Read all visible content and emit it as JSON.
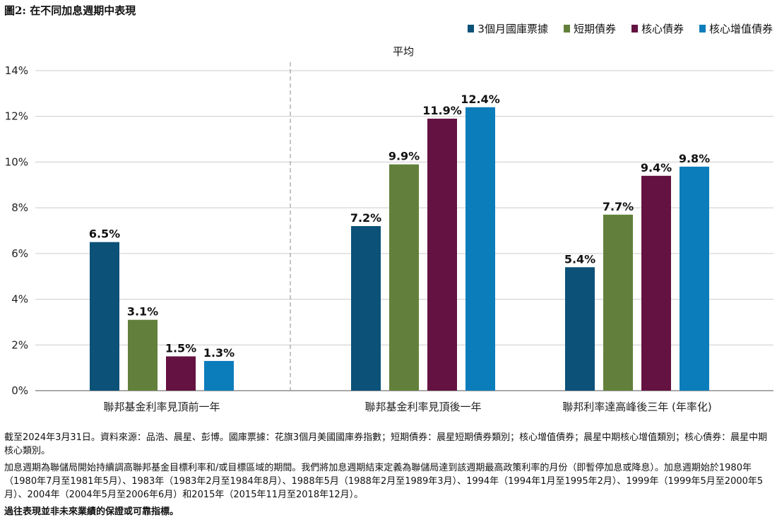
{
  "title": "圖2: 在不同加息週期中表現",
  "subtitle": "平均",
  "chart_data": {
    "type": "bar",
    "title": "圖2: 在不同加息週期中表現",
    "subtitle": "平均",
    "categories": [
      "聯邦基金利率見頂前一年",
      "聯邦基金利率見頂後一年",
      "聯邦利率達高峰後三年 (年率化)"
    ],
    "series": [
      {
        "name": "3個月國庫票據",
        "color": "#0b5178",
        "values": [
          6.5,
          7.2,
          5.4
        ],
        "labels": [
          "6.5%",
          "7.2%",
          "5.4%"
        ]
      },
      {
        "name": "短期債券",
        "color": "#62803b",
        "values": [
          3.1,
          9.9,
          7.7
        ],
        "labels": [
          "3.1%",
          "9.9%",
          "7.7%"
        ]
      },
      {
        "name": "核心債券",
        "color": "#641241",
        "values": [
          1.5,
          11.9,
          9.4
        ],
        "labels": [
          "1.5%",
          "11.9%",
          "9.4%"
        ]
      },
      {
        "name": "核心增值債券",
        "color": "#0c7dbb",
        "values": [
          1.3,
          12.4,
          9.8
        ],
        "labels": [
          "1.3%",
          "12.4%",
          "9.8%"
        ]
      }
    ],
    "ylim": [
      0,
      14
    ],
    "yticks": [
      "0%",
      "2%",
      "4%",
      "6%",
      "8%",
      "10%",
      "12%",
      "14%"
    ],
    "xlabel": "",
    "ylabel": "",
    "grid": false,
    "legend": "top-right",
    "divider_after_category": 0
  },
  "notes": [
    "截至2024年3月31日。資料來源：品浩、晨星、彭博。國庫票據：花旗3個月美國國庫券指數；短期債券：晨星短期債券類別；核心增值債券；晨星中期核心增值類別；核心債券：晨星中期核心類別。",
    "加息週期為聯儲局開始持續調高聯邦基金目標利率和/或目標區域的期間。我們將加息週期結束定義為聯儲局達到該週期最高政策利率的月份（即暫停加息或降息）。加息週期始於1980年（1980年7月至1981年5月）、1983年（1983年2月至1984年8月）、1988年5月（1988年2月至1989年3月）、1994年（1994年1月至1995年2月）、1999年（1999年5月至2000年5月）、2004年（2004年5月至2006年6月）和2015年（2015年11月至2018年12月）。"
  ],
  "disclaimer": "過往表現並非未來業績的保證或可靠指標。"
}
